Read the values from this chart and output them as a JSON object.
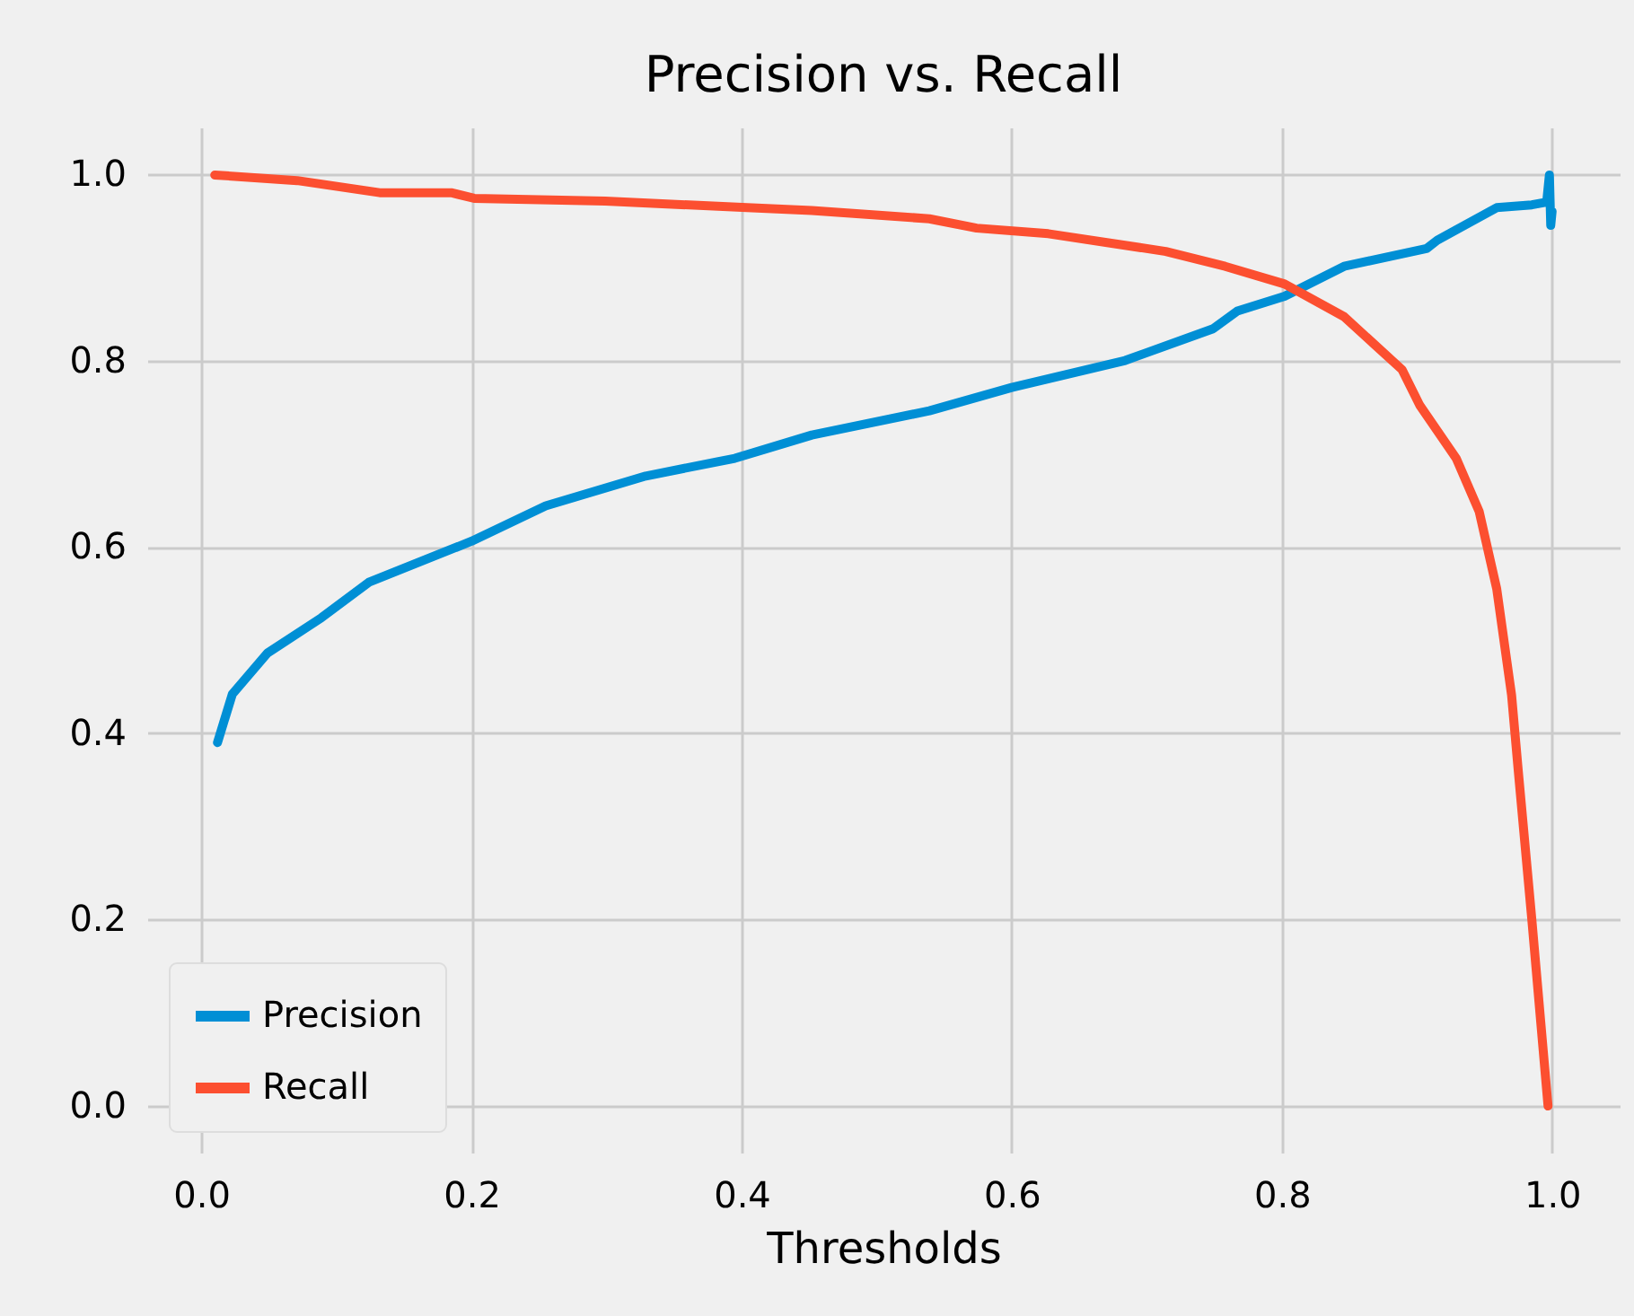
{
  "chart_data": {
    "type": "line",
    "title": "Precision vs. Recall",
    "xlabel": "Thresholds",
    "xlim": [
      -0.04,
      1.05
    ],
    "ylim": [
      -0.05,
      1.05
    ],
    "xticks": [
      {
        "value": 0,
        "label": "0.0"
      },
      0.2,
      0.4,
      0.6,
      0.8,
      {
        "value": 1,
        "label": "1.0"
      }
    ],
    "yticks": [
      {
        "value": 0,
        "label": "0.0"
      },
      0.2,
      0.4,
      0.6,
      0.8,
      {
        "value": 1,
        "label": "1.0"
      }
    ],
    "grid": true,
    "legend": "bottom left",
    "series": [
      {
        "name": "Precision",
        "color": "#008fd5",
        "x": [
          0.012,
          0.023,
          0.049,
          0.089,
          0.124,
          0.2,
          0.255,
          0.329,
          0.395,
          0.452,
          0.539,
          0.6,
          0.684,
          0.749,
          0.767,
          0.802,
          0.846,
          0.907,
          0.915,
          0.959,
          0.985,
          0.996,
          0.998,
          0.999,
          1.0
        ],
        "values": [
          0.39,
          0.442,
          0.486,
          0.524,
          0.562,
          0.606,
          0.644,
          0.676,
          0.695,
          0.72,
          0.746,
          0.771,
          0.8,
          0.834,
          0.853,
          0.869,
          0.901,
          0.92,
          0.929,
          0.964,
          0.967,
          0.97,
          0.999,
          0.945,
          0.96
        ]
      },
      {
        "name": "Recall",
        "color": "#fc4f30",
        "x": [
          0.01,
          0.071,
          0.132,
          0.185,
          0.202,
          0.299,
          0.404,
          0.452,
          0.539,
          0.574,
          0.627,
          0.714,
          0.758,
          0.802,
          0.846,
          0.889,
          0.902,
          0.929,
          0.946,
          0.959,
          0.97,
          0.975,
          0.985,
          0.997
        ],
        "values": [
          0.999,
          0.993,
          0.98,
          0.98,
          0.974,
          0.971,
          0.964,
          0.961,
          0.952,
          0.942,
          0.936,
          0.917,
          0.901,
          0.882,
          0.847,
          0.79,
          0.752,
          0.695,
          0.638,
          0.555,
          0.441,
          0.359,
          0.2,
          0.0
        ]
      }
    ]
  }
}
